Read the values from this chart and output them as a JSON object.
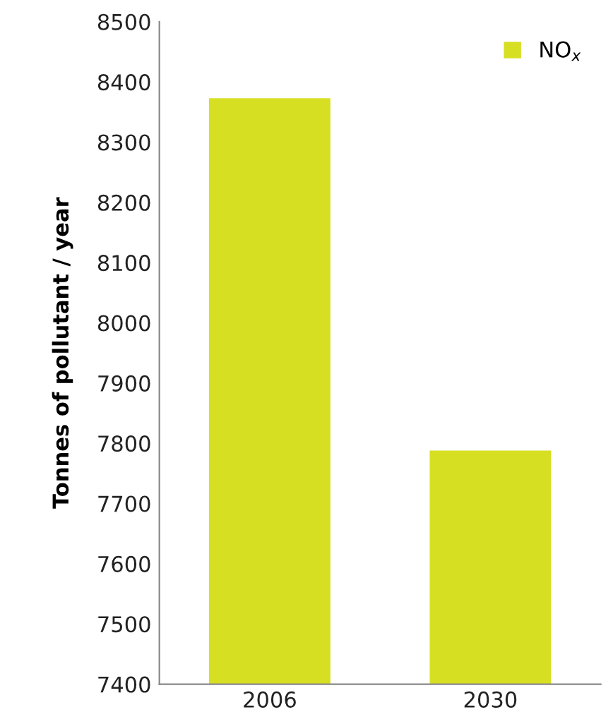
{
  "chart_data": {
    "type": "bar",
    "ylabel": "Tonnes of pollutant / year",
    "categories": [
      "2006",
      "2030"
    ],
    "series": [
      {
        "name": "NO$_{x}$",
        "color": "#d7df23",
        "values": [
          8373,
          7788
        ]
      }
    ],
    "ylim": [
      7400,
      8500
    ],
    "yticks": [
      7400,
      7500,
      7600,
      7700,
      7800,
      7900,
      8000,
      8100,
      8200,
      8300,
      8400,
      8500
    ],
    "grid": false,
    "legend": "top right"
  }
}
